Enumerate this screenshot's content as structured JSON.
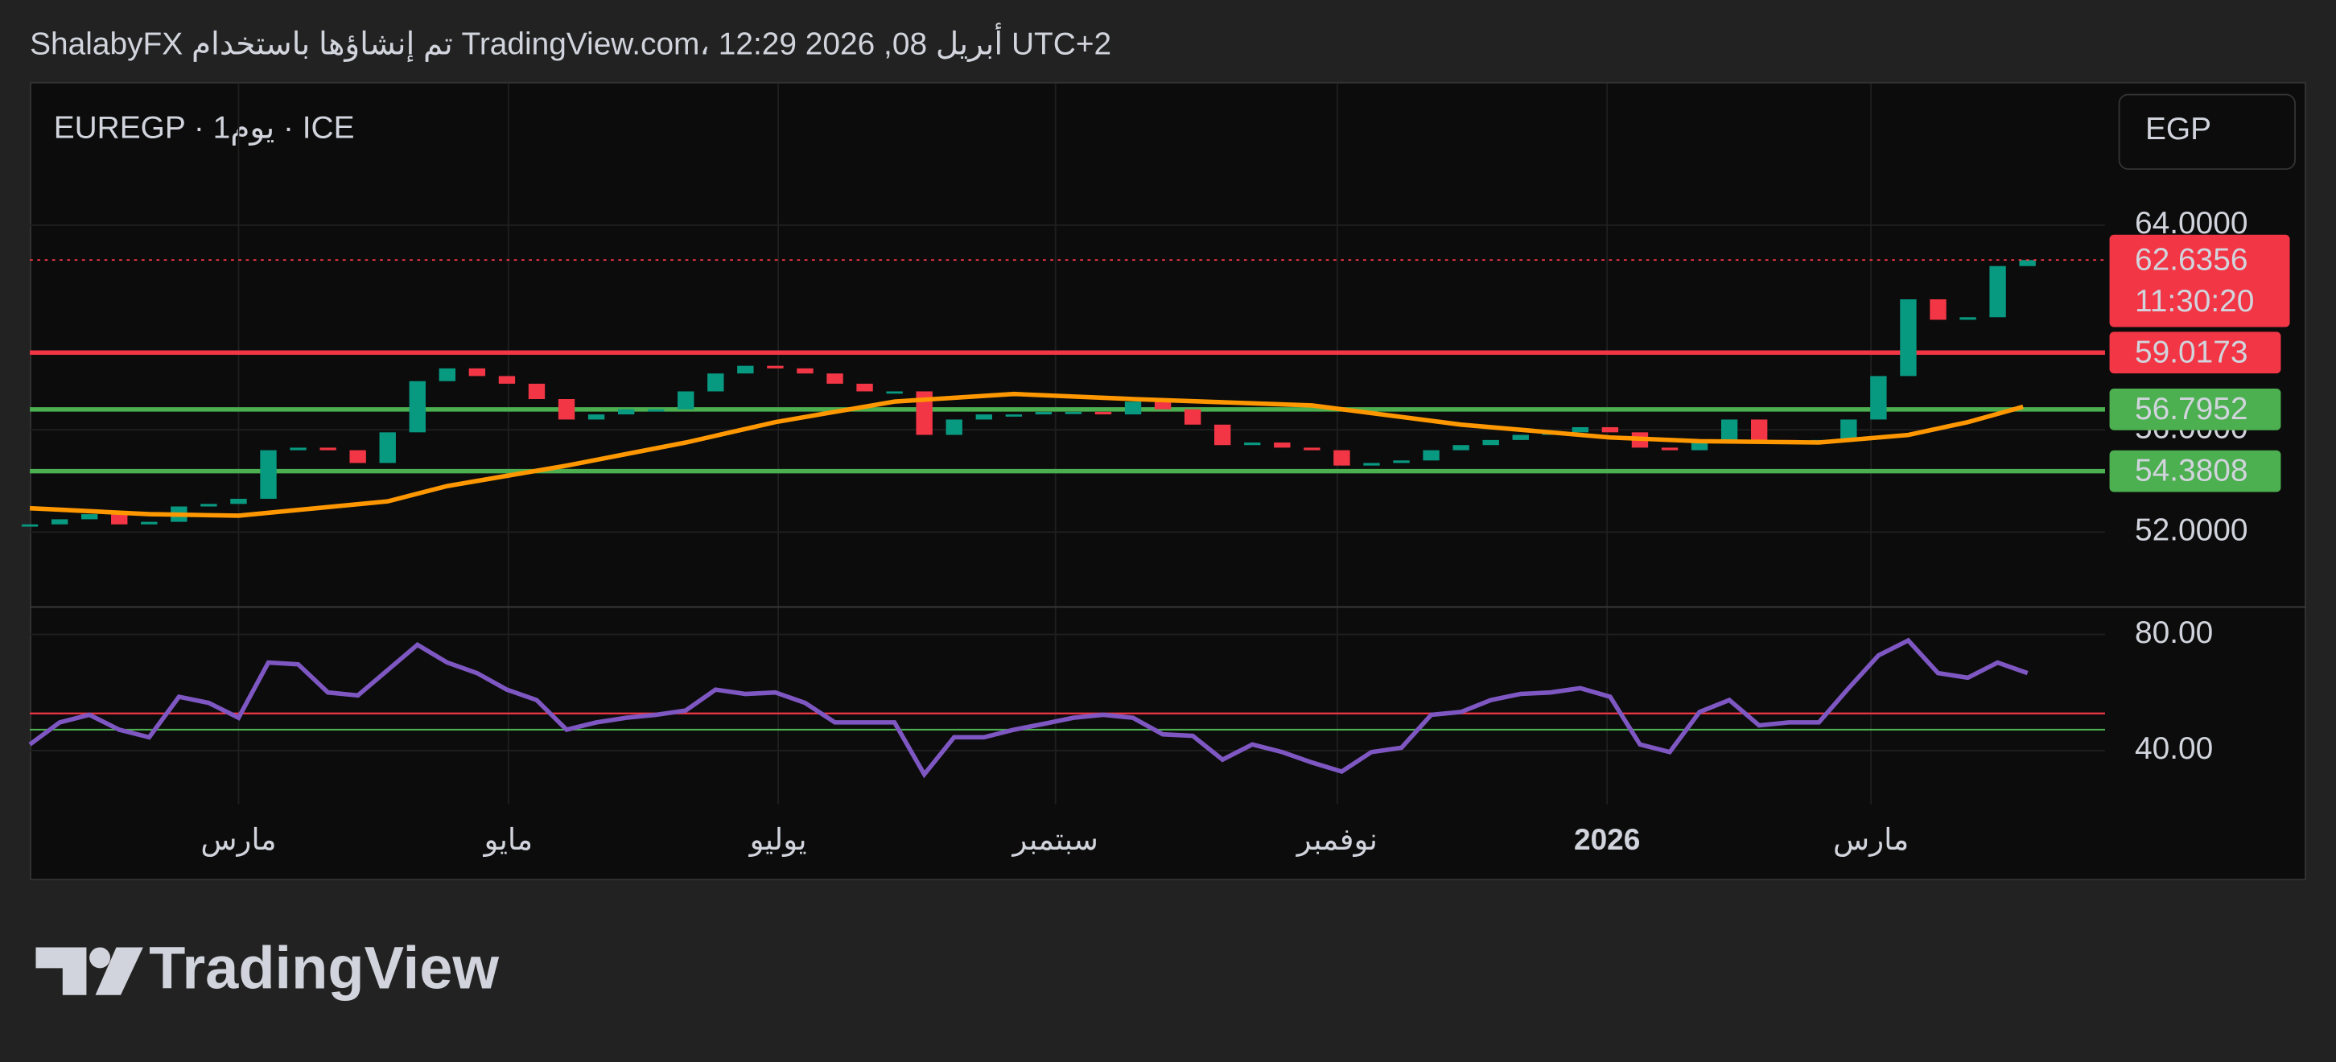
{
  "header": {
    "text": "ShalabyFX تم إنشاؤها باستخدام TradingView.com، 12:29 2026 ,08 أبريل UTC+2"
  },
  "footer": {
    "brand": "TradingView"
  },
  "chart_data": [
    {
      "type": "candlestick",
      "symbol": "EUREGP · 1يوم · ICE",
      "currency": "EGP",
      "countdown": "11:30:20",
      "up_color": "#089981",
      "down_color": "#f23645",
      "values": [
        52.3,
        52.5,
        52.7,
        52.3,
        52.4,
        53.0,
        53.1,
        53.3,
        55.2,
        55.3,
        55.2,
        54.7,
        55.9,
        57.9,
        58.4,
        58.1,
        57.8,
        57.2,
        56.4,
        56.6,
        56.8,
        56.8,
        57.5,
        58.2,
        58.5,
        58.4,
        58.2,
        57.8,
        57.5,
        57.5,
        55.8,
        56.4,
        56.6,
        56.6,
        56.7,
        56.7,
        56.6,
        57.1,
        56.8,
        56.2,
        55.4,
        55.5,
        55.3,
        55.2,
        54.6,
        54.7,
        54.8,
        55.2,
        55.4,
        55.6,
        55.8,
        55.9,
        56.1,
        55.9,
        55.3,
        55.2,
        55.6,
        56.4,
        55.6,
        55.5,
        55.6,
        56.4,
        58.1,
        61.1,
        60.3,
        60.4,
        62.4,
        62.6356
      ],
      "overlays": [
        {
          "color": "#ff9800",
          "x": [
            0,
            4,
            7,
            12,
            14,
            18,
            22,
            25,
            29,
            33,
            37,
            43,
            48,
            53,
            56,
            60,
            63,
            65,
            66.85
          ],
          "values": [
            52.93,
            52.7,
            52.64,
            53.2,
            53.8,
            54.6,
            55.5,
            56.3,
            57.1,
            57.4,
            57.2,
            56.95,
            56.2,
            55.7,
            55.55,
            55.5,
            55.8,
            56.3,
            56.9
          ]
        }
      ],
      "levels": [
        {
          "value": 59.0173,
          "color": "#f23645"
        },
        {
          "value": 56.7952,
          "color": "#4caf50"
        },
        {
          "value": 54.3808,
          "color": "#4caf50"
        }
      ],
      "xlim": [
        0,
        69.6
      ],
      "ylim": [
        49.1,
        69.6
      ],
      "yticks": [
        {
          "value": 52,
          "label": "52.0000"
        },
        {
          "value": 56,
          "label": "56.0000"
        },
        {
          "value": 64,
          "label": "64.0000"
        }
      ],
      "grid": true
    },
    {
      "type": "line",
      "color": "#7e57c2",
      "values": [
        42.1,
        49.7,
        52.3,
        47.2,
        44.6,
        58.5,
        56.4,
        51.3,
        70.3,
        69.7,
        60.0,
        59.0,
        67.7,
        76.4,
        70.3,
        66.7,
        61.0,
        57.4,
        47.2,
        49.7,
        51.3,
        52.3,
        53.8,
        61.0,
        59.5,
        60.0,
        56.4,
        49.7,
        49.7,
        49.7,
        31.8,
        44.6,
        44.6,
        47.2,
        49.2,
        51.3,
        52.3,
        51.3,
        45.6,
        45.1,
        36.9,
        42.1,
        39.5,
        35.9,
        32.8,
        39.5,
        41.0,
        52.3,
        53.3,
        57.4,
        59.5,
        60.0,
        61.5,
        58.5,
        42.1,
        39.5,
        53.3,
        57.4,
        48.7,
        49.7,
        49.7,
        61.5,
        72.8,
        77.9,
        66.7,
        65.1,
        70.3,
        66.7
      ],
      "levels": [
        {
          "value": 52.8,
          "color": "#f23645"
        },
        {
          "value": 47.2,
          "color": "#4caf50"
        }
      ],
      "xlim": [
        0,
        69.6
      ],
      "ylim": [
        21.5,
        89.7
      ],
      "yticks": [
        {
          "value": 40,
          "label": "40.00"
        },
        {
          "value": 80,
          "label": "80.00"
        }
      ],
      "xticks": [
        {
          "value": 7,
          "label": "مارس"
        },
        {
          "value": 16.05,
          "label": "مايو"
        },
        {
          "value": 25.1,
          "label": "يوليو"
        },
        {
          "value": 34.4,
          "label": "سبتمبر"
        },
        {
          "value": 43.85,
          "label": "نوفمبر"
        },
        {
          "value": 52.9,
          "label": "2026"
        },
        {
          "value": 61.75,
          "label": "مارس"
        }
      ],
      "grid": true
    }
  ]
}
